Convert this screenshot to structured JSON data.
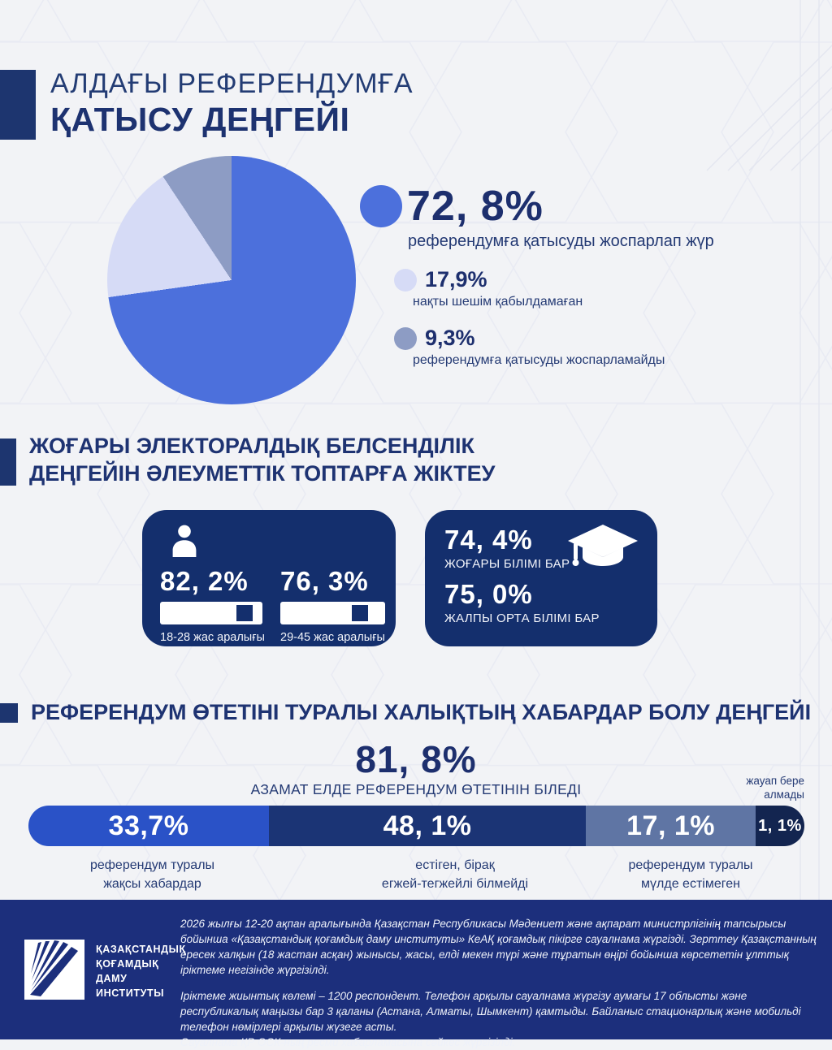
{
  "theme": {
    "background": "#f2f3f6",
    "navy_text": "#1e3372",
    "navy_deep": "#142f6d",
    "footer_bg": "#1c2f7c",
    "pie_blue": "#4c70dc",
    "pie_lavender": "#d6dbf6",
    "pie_gray_blue": "#8d9cc4"
  },
  "header": {
    "title_line1": "АЛДАҒЫ РЕФЕРЕНДУМҒА",
    "title_line2": "ҚАТЫСУ ДЕҢГЕЙІ"
  },
  "pie_section": {
    "legend": [
      {
        "value": "72, 8%",
        "pct": 72.8,
        "color": "#4c70dc",
        "label": "референдумға қатысуды жоспарлап жүр"
      },
      {
        "value": "17,9%",
        "pct": 17.9,
        "color": "#d6dbf6",
        "label": "нақты шешім қабылдамаған"
      },
      {
        "value": "9,3%",
        "pct": 9.3,
        "color": "#8d9cc4",
        "label": "референдумға қатысуды жоспарламайды"
      }
    ]
  },
  "groups_section": {
    "heading_line1": "ЖОҒАРЫ ЭЛЕКТОРАЛДЫҚ БЕЛСЕНДІЛІК",
    "heading_line2": "ДЕҢГЕЙІН ӘЛЕУМЕТТІК ТОПТАРҒА ЖІКТЕУ",
    "age_card": {
      "items": [
        {
          "value": "82, 2%",
          "pct": 82.2,
          "label": "18-28 жас аралығы"
        },
        {
          "value": "76, 3%",
          "pct": 76.3,
          "label": "29-45 жас аралығы"
        }
      ]
    },
    "edu_card": {
      "items": [
        {
          "value": "74, 4%",
          "pct": 74.4,
          "label": "ЖОҒАРЫ БІЛІМІ БАР"
        },
        {
          "value": "75, 0%",
          "pct": 75.0,
          "label": "ЖАЛПЫ ОРТА БІЛІМІ БАР"
        }
      ]
    }
  },
  "awareness_section": {
    "heading": "РЕФЕРЕНДУМ ӨТЕТІНІ ТУРАЛЫ ХАЛЫҚТЫҢ ХАБАРДАР БОЛУ ДЕҢГЕЙІ",
    "total_value": "81, 8%",
    "total_label": "АЗАМАТ ЕЛДЕ РЕФЕРЕНДУМ ӨТЕТІНІН БІЛЕДІ",
    "side_note_line1": "жауап бере",
    "side_note_line2": "алмады",
    "segments": [
      {
        "value": "33,7%",
        "pct": 33.7,
        "color": "#2a52c7"
      },
      {
        "value": "48, 1%",
        "pct": 48.1,
        "color": "#1b3475"
      },
      {
        "value": "17, 1%",
        "pct": 17.1,
        "color": "#5f75a4"
      },
      {
        "value": "1, 1%",
        "pct": 1.1,
        "color": "#132550"
      }
    ],
    "bar_labels": [
      {
        "line1": "референдум туралы",
        "line2": "жақсы хабардар"
      },
      {
        "line1": "естіген, бірақ",
        "line2": "егжей-тегжейлі білмейді"
      },
      {
        "line1": "референдум туралы",
        "line2": "мүлде естімеген"
      }
    ]
  },
  "footer": {
    "logo_line1": "ҚАЗАҚСТАНДЫҚ",
    "logo_line2": "ҚОҒАМДЫҚ",
    "logo_line3": "ДАМУ",
    "logo_line4": "ИНСТИТУТЫ",
    "paragraph1": "2026 жылғы 12-20 ақпан аралығында Қазақстан Республикасы Мәдениет және ақпарат министрлігінің тапсырысы бойынша «Қазақстандық қоғамдық даму институты» КеАҚ қоғамдық пікірге сауалнама жүргізді. Зерттеу Қазақстанның ересек халқын (18 жастан асқан) жынысы, жасы, елді мекен түрі және тұратын өңірі бойынша көрсететін ұлттық іріктеме негізінде жүргізілді.",
    "paragraph2": "Іріктеме жиынтық көлемі – 1200 респондент. Телефон арқылы сауалнама жүргізу аумағы 17 облысты және республикалық маңызы бар 3 қаланы (Астана, Алматы, Шымкент) қамтыды. Байланыс стационарлық және мобильді телефон нөмірлері арқылы жүзеге асты.",
    "paragraph3": "Сауалнама ҚР ОСК-ның ресми хабарламасына сәйкес жүргізілді."
  },
  "chart_data": [
    {
      "type": "pie",
      "title": "АЛДАҒЫ РЕФЕРЕНДУМҒА ҚАТЫСУ ДЕҢГЕЙІ",
      "labels": [
        "референдумға қатысуды жоспарлап жүр",
        "нақты шешім қабылдамаған",
        "референдумға қатысуды жоспарламайды"
      ],
      "values": [
        72.8,
        17.9,
        9.3
      ],
      "colors": [
        "#4c70dc",
        "#d6dbf6",
        "#8d9cc4"
      ],
      "legend_position": "right"
    },
    {
      "type": "bar",
      "title": "ЖОҒАРЫ ЭЛЕКТОРАЛДЫҚ БЕЛСЕНДІЛІК ДЕҢГЕЙІН ӘЛЕУМЕТТІК ТОПТАРҒА ЖІКТЕУ",
      "categories": [
        "18-28 жас аралығы",
        "29-45 жас аралығы",
        "жоғары білімі бар",
        "жалпы орта білімі бар"
      ],
      "values": [
        82.2,
        76.3,
        74.4,
        75.0
      ],
      "ylim": [
        0,
        100
      ]
    },
    {
      "type": "bar",
      "subtype": "stacked-horizontal",
      "title": "РЕФЕРЕНДУМ ӨТЕТІНІ ТУРАЛЫ ХАЛЫҚТЫҢ ХАБАРДАР БОЛУ ДЕҢГЕЙІ",
      "annotation": "81,8% — АЗАМАТ ЕЛДЕ РЕФЕРЕНДУМ ӨТЕТІНІН БІЛЕДІ",
      "categories": [
        "референдум туралы жақсы хабардар",
        "естіген, бірақ егжей-тегжейлі білмейді",
        "референдум туралы мүлде естімеген",
        "жауап бере алмады"
      ],
      "values": [
        33.7,
        48.1,
        17.1,
        1.1
      ],
      "colors": [
        "#2a52c7",
        "#1b3475",
        "#5f75a4",
        "#132550"
      ],
      "xlim": [
        0,
        100
      ]
    }
  ]
}
